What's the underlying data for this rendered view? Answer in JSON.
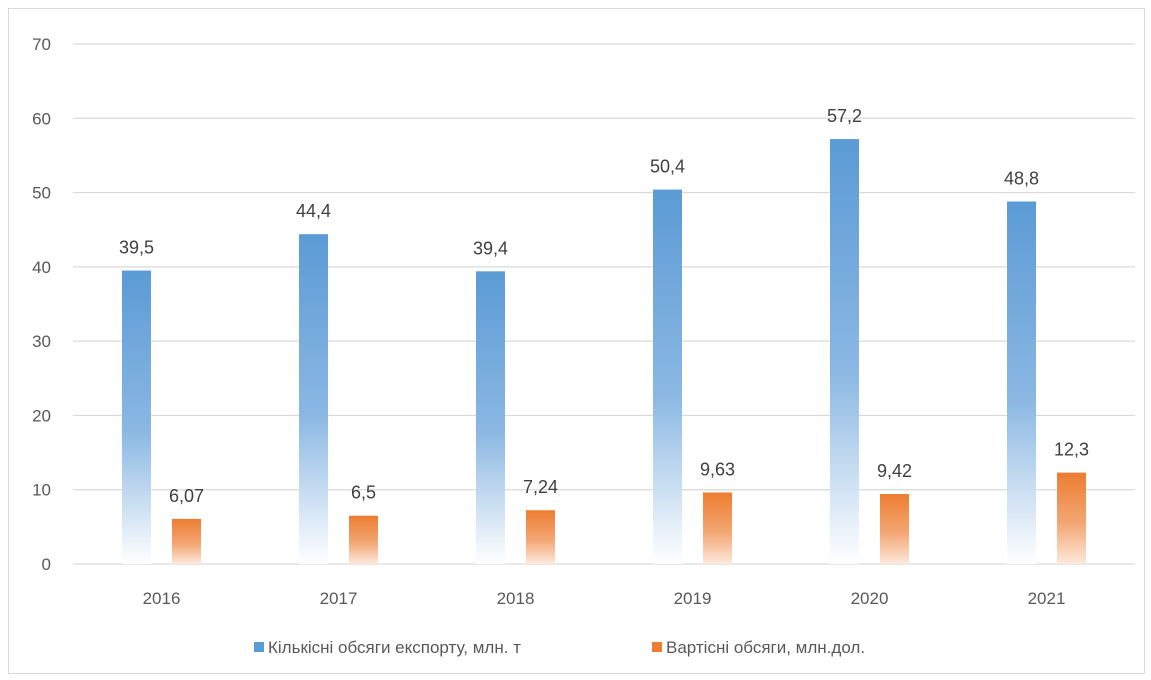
{
  "chart_data": {
    "type": "bar",
    "categories": [
      "2016",
      "2017",
      "2018",
      "2019",
      "2020",
      "2021"
    ],
    "series": [
      {
        "name": "Кількісні обсяги експорту, млн. т",
        "values": [
          39.5,
          44.4,
          39.4,
          50.4,
          57.2,
          48.8
        ],
        "labels": [
          "39,5",
          "44,4",
          "39,4",
          "50,4",
          "57,2",
          "48,8"
        ],
        "color": "#5b9bd5",
        "fill": "gradient-fade-to-white-bottom"
      },
      {
        "name": "Вартісні обсяги, млн.дол.",
        "values": [
          6.07,
          6.5,
          7.24,
          9.63,
          9.42,
          12.3
        ],
        "labels": [
          "6,07",
          "6,5",
          "7,24",
          "9,63",
          "9,42",
          "12,3"
        ],
        "color": "#ed7d31",
        "fill": "gradient-fade-to-white-bottom"
      }
    ],
    "ylim": [
      0,
      70
    ],
    "yticks": [
      0,
      10,
      20,
      30,
      40,
      50,
      60,
      70
    ],
    "grid": true,
    "legend_position": "bottom"
  }
}
